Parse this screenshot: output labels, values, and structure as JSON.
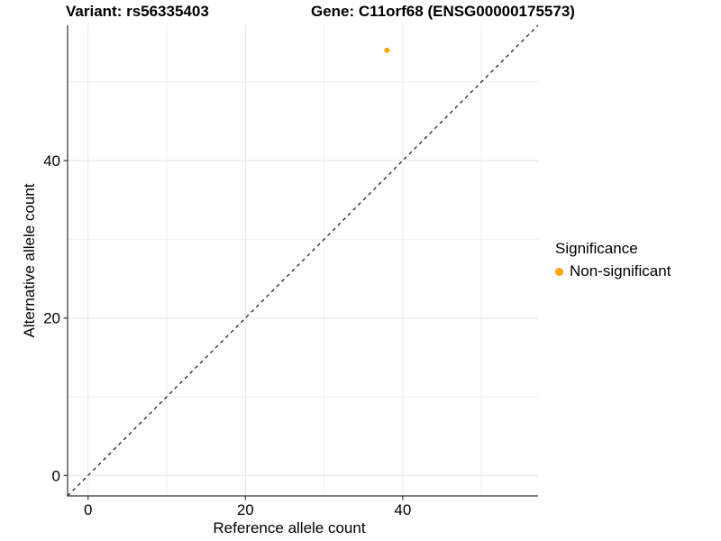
{
  "figure": {
    "title_left": "Variant: rs56335403",
    "title_right": "Gene: C11orf68 (ENSG00000175573)"
  },
  "chart_data": {
    "type": "scatter",
    "title_left": "Variant: rs56335403",
    "title_right": "Gene: C11orf68 (ENSG00000175573)",
    "xlabel": "Reference allele count",
    "ylabel": "Alternative allele count",
    "xlim": [
      -2.6,
      57.2
    ],
    "ylim": [
      -2.6,
      57.2
    ],
    "x_ticks": [
      0,
      20,
      40
    ],
    "y_ticks": [
      0,
      20,
      40
    ],
    "grid": true,
    "grid_step": 10,
    "points": [
      {
        "x": 38,
        "y": 54,
        "series": "Non-significant"
      }
    ],
    "identity_line": {
      "type": "abline",
      "slope": 1,
      "intercept": 0,
      "style": "dashed"
    },
    "legend": {
      "title": "Significance",
      "position": "right",
      "items": [
        {
          "label": "Non-significant",
          "color": "#FFA500"
        }
      ]
    },
    "colors": {
      "point": "#FFA500",
      "grid_major": "#E3E3E3",
      "grid_minor": "#EFEFEF",
      "axis_line": "#333333",
      "dashed_line": "#111111",
      "text": "#000000"
    }
  }
}
